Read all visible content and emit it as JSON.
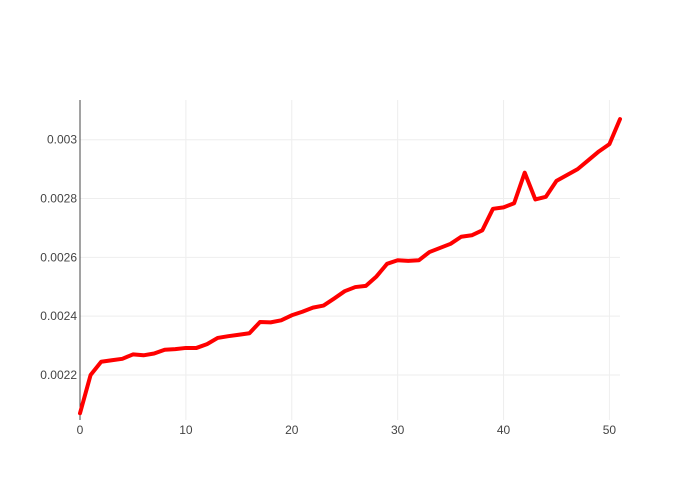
{
  "chart_data": {
    "type": "line",
    "title": "",
    "xlabel": "",
    "ylabel": "",
    "xlim": [
      0,
      51
    ],
    "ylim": [
      0.002047,
      0.003135
    ],
    "x_ticks": [
      0,
      10,
      20,
      30,
      40,
      50
    ],
    "x_tick_labels": [
      "0",
      "10",
      "20",
      "30",
      "40",
      "50"
    ],
    "y_ticks": [
      0.0022,
      0.0024,
      0.0026,
      0.0028,
      0.003
    ],
    "y_tick_labels": [
      "0.0022",
      "0.0024",
      "0.0026",
      "0.0028",
      "0.003"
    ],
    "grid": true,
    "legend": "none",
    "series": [
      {
        "color": "#ff0000",
        "x": [
          0,
          1,
          2,
          3,
          4,
          5,
          6,
          7,
          8,
          9,
          10,
          11,
          12,
          13,
          14,
          15,
          16,
          17,
          18,
          19,
          20,
          21,
          22,
          23,
          24,
          25,
          26,
          27,
          28,
          29,
          30,
          31,
          32,
          33,
          34,
          35,
          36,
          37,
          38,
          39,
          40,
          41,
          42,
          43,
          44,
          45,
          46,
          47,
          48,
          49,
          50,
          51
        ],
        "values": [
          0.00207,
          0.0022,
          0.002245,
          0.00225,
          0.002255,
          0.00227,
          0.002267,
          0.002273,
          0.002286,
          0.002288,
          0.002292,
          0.002292,
          0.002305,
          0.002326,
          0.002332,
          0.002337,
          0.002342,
          0.00238,
          0.002379,
          0.002386,
          0.002403,
          0.002415,
          0.002429,
          0.002436,
          0.00246,
          0.002485,
          0.002499,
          0.002503,
          0.002535,
          0.002578,
          0.00259,
          0.002588,
          0.00259,
          0.002618,
          0.002632,
          0.002646,
          0.00267,
          0.002675,
          0.002692,
          0.002765,
          0.00277,
          0.002784,
          0.002888,
          0.002797,
          0.002806,
          0.00286,
          0.00288,
          0.0029,
          0.00293,
          0.00296,
          0.002985,
          0.00307
        ]
      }
    ]
  }
}
